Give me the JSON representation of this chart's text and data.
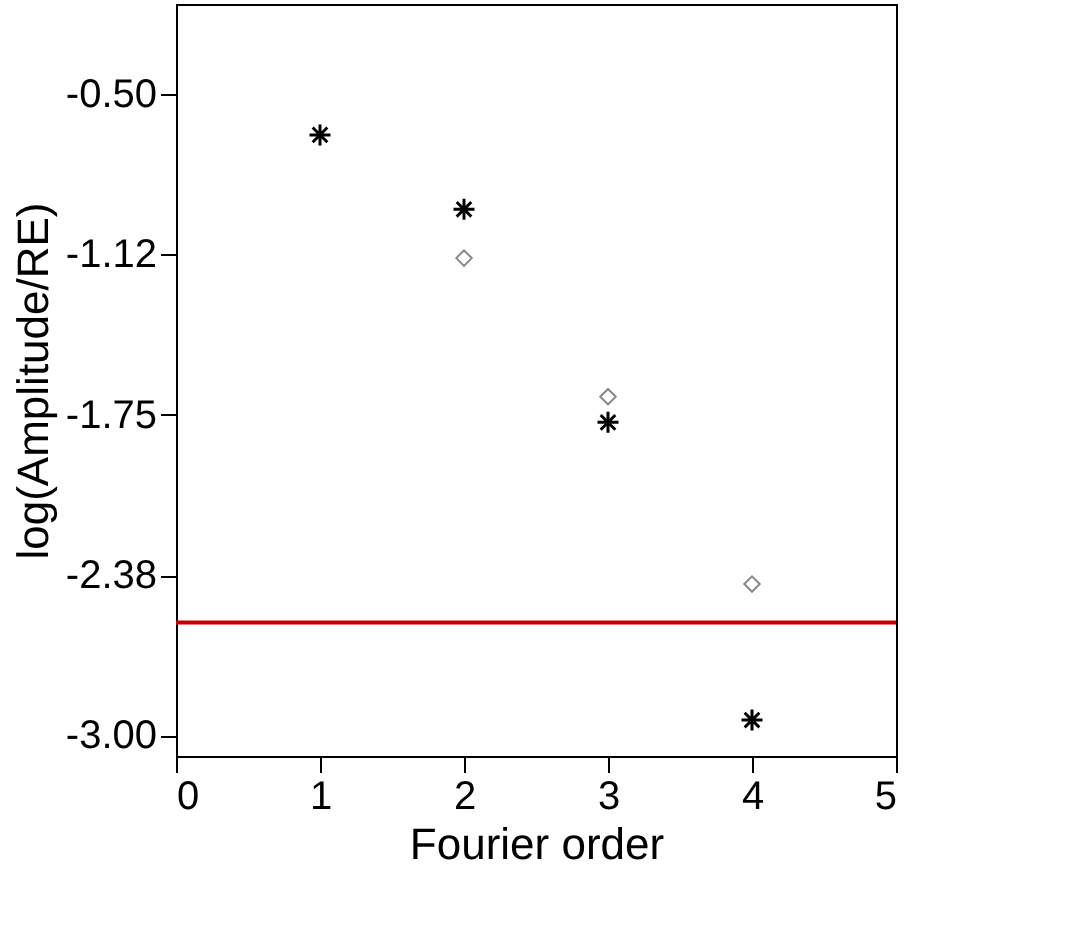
{
  "chart_data": {
    "type": "scatter",
    "xlabel": "Fourier order",
    "ylabel": "log(Amplitude/RE)",
    "xlim": [
      0,
      5
    ],
    "xticks": [
      0,
      1,
      2,
      3,
      4,
      5
    ],
    "ylim": [
      -3.08,
      -0.15
    ],
    "yticks": [
      {
        "value": -0.5,
        "label": "-0.50"
      },
      {
        "value": -1.125,
        "label": "-1.12"
      },
      {
        "value": -1.75,
        "label": "-1.75"
      },
      {
        "value": -2.375,
        "label": "-2.38"
      },
      {
        "value": -3.0,
        "label": "-3.00"
      }
    ],
    "grid": false,
    "series": [
      {
        "color": "#000000",
        "marker": "cross",
        "x": [
          1,
          2,
          3,
          4
        ],
        "values": [
          -0.66,
          -0.95,
          -1.78,
          -2.94
        ]
      },
      {
        "color": "#888888",
        "marker": "diamond",
        "x": [
          2,
          3,
          4
        ],
        "values": [
          -1.14,
          -1.68,
          -2.41
        ]
      }
    ],
    "ref_lines": [
      {
        "axis": "y",
        "value": -2.56,
        "color": "#cc0000"
      }
    ]
  }
}
